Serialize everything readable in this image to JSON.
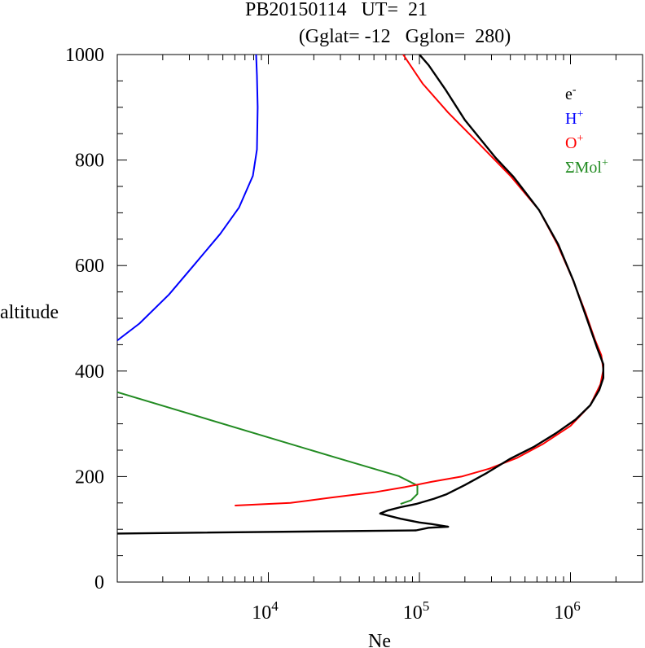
{
  "chart_data": {
    "type": "line",
    "title_line1": "PB20150114   UT=  21",
    "title_line2": "(Gglat= -12   Gglon=  280)",
    "xlabel": "Ne",
    "ylabel": "altitude",
    "x_scale": "log",
    "xlim": [
      1000,
      3000000
    ],
    "ylim": [
      0,
      1000
    ],
    "x_ticks": [
      {
        "base": "10",
        "exp": "4",
        "value": 10000
      },
      {
        "base": "10",
        "exp": "5",
        "value": 100000
      },
      {
        "base": "10",
        "exp": "6",
        "value": 1000000
      }
    ],
    "y_ticks": [
      "0",
      "200",
      "400",
      "600",
      "800",
      "1000"
    ],
    "grid": false,
    "legend_position": "top-right",
    "series": [
      {
        "name": "e-",
        "label_base": "e",
        "label_sup": "-",
        "color": "#000000",
        "points": [
          [
            1000,
            92
          ],
          [
            95000,
            98
          ],
          [
            115000,
            103
          ],
          [
            155000,
            105
          ],
          [
            120000,
            110
          ],
          [
            100000,
            113
          ],
          [
            75000,
            120
          ],
          [
            60000,
            127
          ],
          [
            55000,
            130
          ],
          [
            62000,
            136
          ],
          [
            75000,
            142
          ],
          [
            95000,
            148
          ],
          [
            125000,
            158
          ],
          [
            150000,
            166
          ],
          [
            200000,
            184
          ],
          [
            280000,
            207
          ],
          [
            400000,
            234
          ],
          [
            570000,
            256
          ],
          [
            800000,
            282
          ],
          [
            1080000,
            308
          ],
          [
            1350000,
            335
          ],
          [
            1550000,
            364
          ],
          [
            1650000,
            387
          ],
          [
            1650000,
            413
          ],
          [
            1500000,
            444
          ],
          [
            1280000,
            500
          ],
          [
            1050000,
            570
          ],
          [
            830000,
            640
          ],
          [
            620000,
            705
          ],
          [
            420000,
            768
          ],
          [
            320000,
            804
          ],
          [
            200000,
            876
          ],
          [
            150000,
            932
          ],
          [
            115000,
            980
          ],
          [
            100000,
            1000
          ]
        ]
      },
      {
        "name": "H+",
        "label_base": "H",
        "label_sup": "+",
        "color": "#0000ff",
        "points": [
          [
            1000,
            458
          ],
          [
            1400,
            490
          ],
          [
            2200,
            545
          ],
          [
            3200,
            600
          ],
          [
            4800,
            660
          ],
          [
            6400,
            710
          ],
          [
            7900,
            770
          ],
          [
            8400,
            820
          ],
          [
            8500,
            900
          ],
          [
            8400,
            960
          ],
          [
            8300,
            1000
          ]
        ]
      },
      {
        "name": "O+",
        "label_base": "O",
        "label_sup": "+",
        "color": "#ff0000",
        "points": [
          [
            6000,
            145
          ],
          [
            14000,
            150
          ],
          [
            26000,
            160
          ],
          [
            50000,
            170
          ],
          [
            80000,
            180
          ],
          [
            120000,
            190
          ],
          [
            190000,
            200
          ],
          [
            290000,
            215
          ],
          [
            440000,
            235
          ],
          [
            660000,
            262
          ],
          [
            1000000,
            296
          ],
          [
            1350000,
            335
          ],
          [
            1580000,
            375
          ],
          [
            1650000,
            402
          ],
          [
            1600000,
            430
          ],
          [
            1450000,
            460
          ],
          [
            1260000,
            510
          ],
          [
            1030000,
            575
          ],
          [
            820000,
            640
          ],
          [
            620000,
            705
          ],
          [
            400000,
            770
          ],
          [
            250000,
            830
          ],
          [
            155000,
            890
          ],
          [
            105000,
            945
          ],
          [
            78000,
            1000
          ]
        ]
      },
      {
        "name": "ΣMol+",
        "label_base": "ΣMol",
        "label_sup": "+",
        "color": "#228b22",
        "points": [
          [
            1000,
            360
          ],
          [
            28000,
            236
          ],
          [
            73000,
            201
          ],
          [
            97000,
            183
          ],
          [
            97000,
            167
          ],
          [
            88000,
            155
          ],
          [
            75000,
            148
          ]
        ]
      }
    ]
  }
}
